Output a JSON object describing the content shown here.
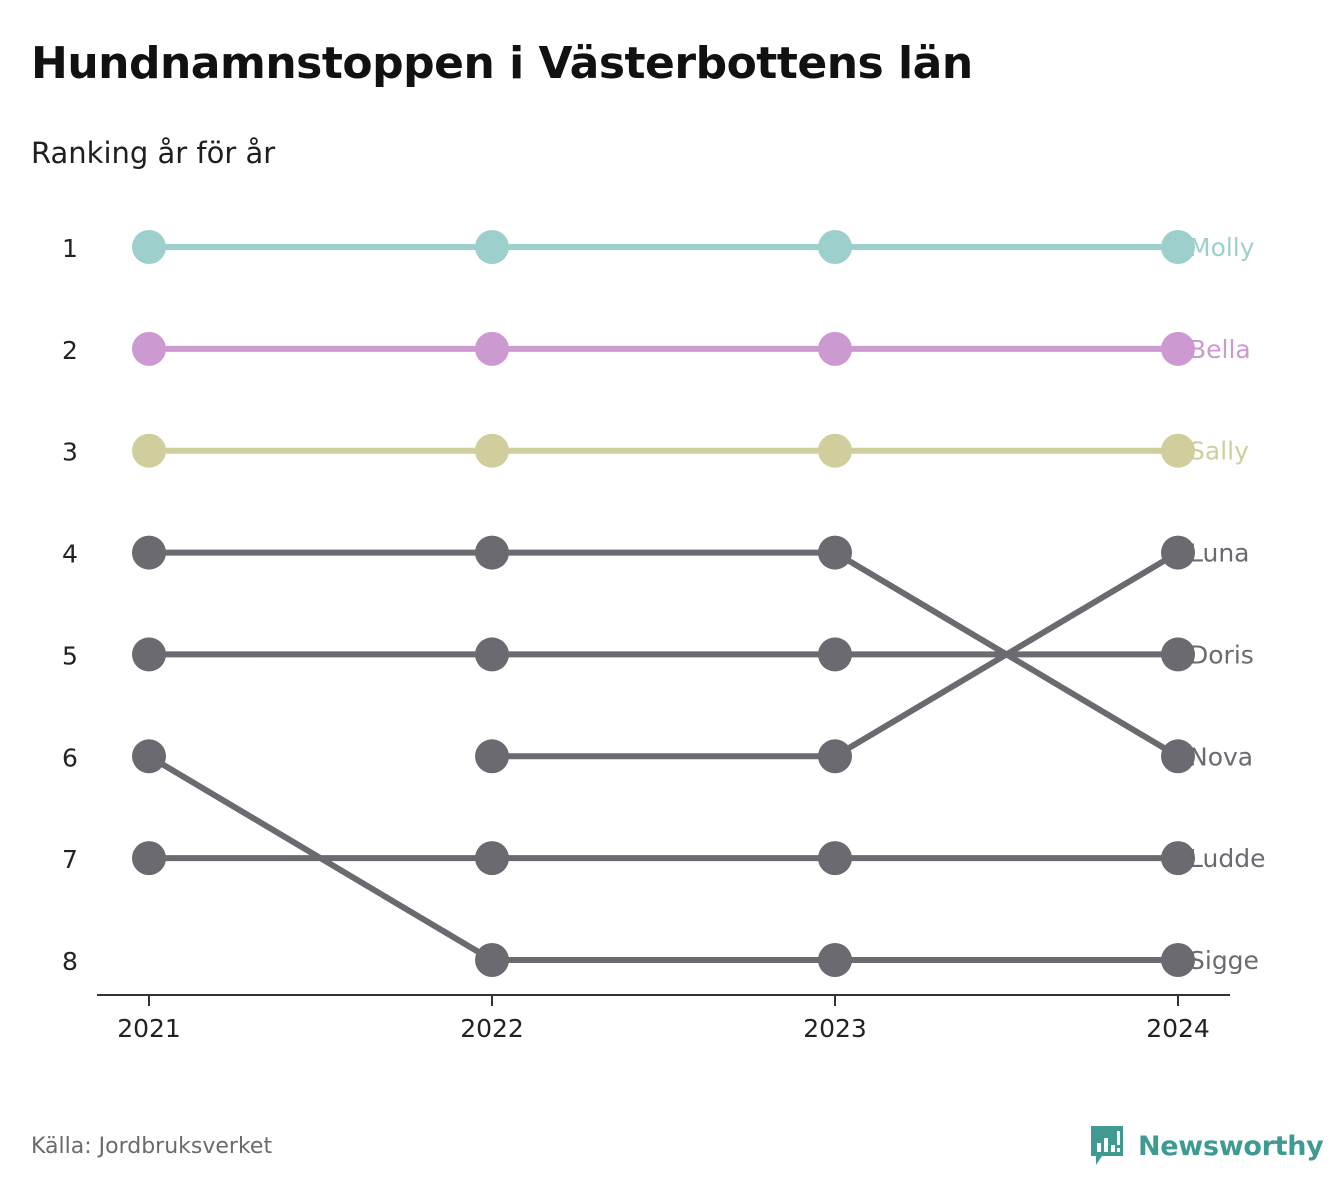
{
  "title": "Hundnamnstoppen i Västerbottens län",
  "subtitle": "Ranking år för år",
  "source": "Källa: Jordbruksverket",
  "brand": {
    "name": "Newsworthy",
    "color": "#3f9a92",
    "icon": "newsworthy-logo-icon"
  },
  "chart_data": {
    "type": "line",
    "years": [
      "2021",
      "2022",
      "2023",
      "2024"
    ],
    "rank_labels": [
      "1",
      "2",
      "3",
      "4",
      "5",
      "6",
      "7",
      "8"
    ],
    "ylim": [
      1,
      8
    ],
    "y_inverted": true,
    "grid": false,
    "series": [
      {
        "name": "Molly",
        "color": "#9dcfcd",
        "ranks": [
          1,
          1,
          1,
          1
        ]
      },
      {
        "name": "Bella",
        "color": "#cc99d0",
        "ranks": [
          2,
          2,
          2,
          2
        ]
      },
      {
        "name": "Sally",
        "color": "#cfce9c",
        "ranks": [
          3,
          3,
          3,
          3
        ]
      },
      {
        "name": "Luna",
        "color": "#6b6a70",
        "ranks": [
          null,
          6,
          6,
          4
        ]
      },
      {
        "name": "Doris",
        "color": "#6b6a70",
        "ranks": [
          5,
          5,
          5,
          5
        ]
      },
      {
        "name": "Nova",
        "color": "#6b6a70",
        "ranks": [
          4,
          4,
          4,
          6
        ]
      },
      {
        "name": "Ludde",
        "color": "#6b6a70",
        "ranks": [
          7,
          7,
          7,
          7
        ]
      },
      {
        "name": "Sigge",
        "color": "#6b6a70",
        "ranks": [
          6,
          8,
          8,
          8
        ]
      }
    ]
  }
}
